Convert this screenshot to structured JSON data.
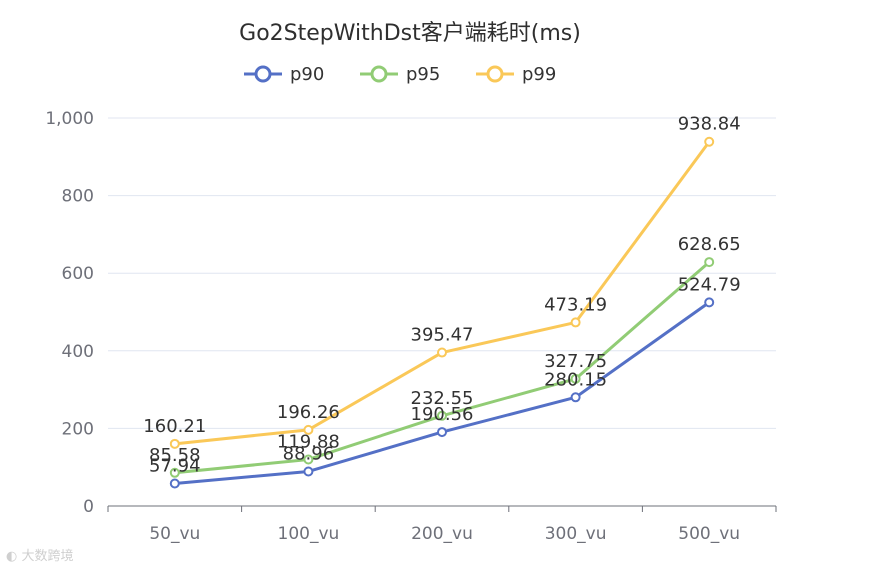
{
  "chart_data": {
    "type": "line",
    "title": "Go2StepWithDst客户端耗时(ms)",
    "categories": [
      "50_vu",
      "100_vu",
      "200_vu",
      "300_vu",
      "500_vu"
    ],
    "y_ticks": [
      "0",
      "200",
      "400",
      "600",
      "800",
      "1,000"
    ],
    "ylim": [
      0,
      1000
    ],
    "grid": "horizontal",
    "legend_position": "top-center",
    "series": [
      {
        "name": "p90",
        "color": "#5470c6",
        "values": [
          57.94,
          88.96,
          190.56,
          280.15,
          524.79
        ],
        "labels": [
          "57.94",
          "88.96",
          "190.56",
          "280.15",
          "524.79"
        ]
      },
      {
        "name": "p95",
        "color": "#91cc75",
        "values": [
          85.58,
          119.88,
          232.55,
          327.75,
          628.65
        ],
        "labels": [
          "85.58",
          "119.88",
          "232.55",
          "327.75",
          "628.65"
        ]
      },
      {
        "name": "p99",
        "color": "#fac858",
        "values": [
          160.21,
          196.26,
          395.47,
          473.19,
          938.84
        ],
        "labels": [
          "160.21",
          "196.26",
          "395.47",
          "473.19",
          "938.84"
        ]
      }
    ]
  },
  "watermark": {
    "text": "大数跨境",
    "icon": "logo-icon"
  }
}
